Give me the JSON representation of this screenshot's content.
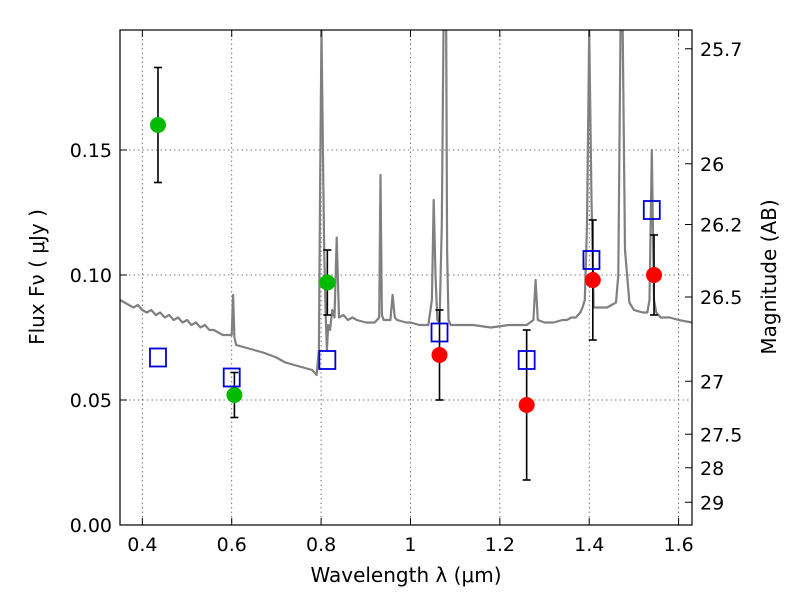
{
  "chart_data": {
    "type": "scatter",
    "xlabel": "Wavelength  λ (μm)",
    "ylabel": "Flux  Fν  ( μJy )",
    "y2label": "Magnitude (AB)",
    "xlim": [
      0.35,
      1.63
    ],
    "ylim": [
      0.0,
      0.198
    ],
    "grid": true,
    "x_ticks": [
      0.4,
      0.6,
      0.8,
      1.0,
      1.2,
      1.4,
      1.6
    ],
    "x_tick_labels": [
      "0.4",
      "0.6",
      "0.8",
      "1",
      "1.2",
      "1.4",
      "1.6"
    ],
    "y_ticks": [
      0.0,
      0.05,
      0.1,
      0.15
    ],
    "y_tick_labels": [
      "0.00",
      "0.05",
      "0.10",
      "0.15"
    ],
    "mag_ticks": [
      {
        "label": "25.7",
        "flux": 0.1905
      },
      {
        "label": "26",
        "flux": 0.1445
      },
      {
        "label": "26.2",
        "flux": 0.1202
      },
      {
        "label": "26.5",
        "flux": 0.0912
      },
      {
        "label": "27",
        "flux": 0.0575
      },
      {
        "label": "27.5",
        "flux": 0.0363
      },
      {
        "label": "28",
        "flux": 0.0229
      },
      {
        "label": "29",
        "flux": 0.0091
      }
    ],
    "spectrum": {
      "color": "#808080",
      "x": [
        0.35,
        0.36,
        0.37,
        0.38,
        0.39,
        0.4,
        0.41,
        0.42,
        0.43,
        0.44,
        0.45,
        0.46,
        0.47,
        0.48,
        0.49,
        0.5,
        0.51,
        0.52,
        0.53,
        0.54,
        0.55,
        0.56,
        0.57,
        0.58,
        0.59,
        0.6,
        0.603,
        0.606,
        0.61,
        0.63,
        0.65,
        0.67,
        0.7,
        0.72,
        0.74,
        0.76,
        0.78,
        0.79,
        0.795,
        0.798,
        0.801,
        0.804,
        0.807,
        0.81,
        0.813,
        0.816,
        0.82,
        0.825,
        0.83,
        0.835,
        0.84,
        0.85,
        0.86,
        0.87,
        0.88,
        0.9,
        0.92,
        0.93,
        0.933,
        0.936,
        0.94,
        0.955,
        0.96,
        0.965,
        0.97,
        0.99,
        1.0,
        1.02,
        1.04,
        1.048,
        1.052,
        1.056,
        1.06,
        1.065,
        1.07,
        1.074,
        1.077,
        1.08,
        1.082,
        1.085,
        1.09,
        1.1,
        1.14,
        1.18,
        1.22,
        1.26,
        1.275,
        1.28,
        1.285,
        1.3,
        1.32,
        1.34,
        1.35,
        1.36,
        1.37,
        1.375,
        1.38,
        1.385,
        1.39,
        1.395,
        1.4,
        1.405,
        1.41,
        1.42,
        1.44,
        1.45,
        1.46,
        1.465,
        1.47,
        1.475,
        1.48,
        1.49,
        1.5,
        1.52,
        1.53,
        1.535,
        1.54,
        1.545,
        1.55,
        1.56,
        1.58,
        1.6,
        1.63
      ],
      "y": [
        0.09,
        0.089,
        0.088,
        0.087,
        0.088,
        0.086,
        0.085,
        0.086,
        0.084,
        0.085,
        0.083,
        0.084,
        0.082,
        0.083,
        0.081,
        0.082,
        0.08,
        0.081,
        0.079,
        0.08,
        0.078,
        0.078,
        0.077,
        0.076,
        0.076,
        0.076,
        0.092,
        0.075,
        0.072,
        0.071,
        0.07,
        0.069,
        0.067,
        0.065,
        0.064,
        0.063,
        0.062,
        0.06,
        0.07,
        0.14,
        0.198,
        0.15,
        0.11,
        0.085,
        0.07,
        0.08,
        0.078,
        0.086,
        0.083,
        0.115,
        0.083,
        0.084,
        0.082,
        0.083,
        0.082,
        0.081,
        0.081,
        0.083,
        0.14,
        0.084,
        0.082,
        0.082,
        0.092,
        0.083,
        0.082,
        0.081,
        0.081,
        0.08,
        0.08,
        0.09,
        0.13,
        0.1,
        0.082,
        0.081,
        0.12,
        0.198,
        0.198,
        0.198,
        0.11,
        0.082,
        0.08,
        0.08,
        0.08,
        0.079,
        0.08,
        0.08,
        0.082,
        0.098,
        0.082,
        0.081,
        0.081,
        0.082,
        0.082,
        0.083,
        0.083,
        0.084,
        0.085,
        0.087,
        0.09,
        0.12,
        0.198,
        0.13,
        0.087,
        0.087,
        0.087,
        0.088,
        0.089,
        0.1,
        0.198,
        0.198,
        0.11,
        0.089,
        0.086,
        0.085,
        0.085,
        0.09,
        0.15,
        0.09,
        0.085,
        0.083,
        0.083,
        0.082,
        0.081
      ]
    },
    "series": [
      {
        "marker": "filled-circle",
        "color": "#00bb00",
        "points": [
          {
            "x": 0.435,
            "y": 0.16,
            "err_lo": 0.023,
            "err_hi": 0.023
          },
          {
            "x": 0.606,
            "y": 0.052,
            "err_lo": 0.009,
            "err_hi": 0.009
          },
          {
            "x": 0.814,
            "y": 0.097,
            "err_lo": 0.013,
            "err_hi": 0.013
          }
        ]
      },
      {
        "marker": "filled-circle",
        "color": "#ff0000",
        "points": [
          {
            "x": 1.065,
            "y": 0.068,
            "err_lo": 0.018,
            "err_hi": 0.018
          },
          {
            "x": 1.26,
            "y": 0.048,
            "err_lo": 0.03,
            "err_hi": 0.03
          },
          {
            "x": 1.408,
            "y": 0.098,
            "err_lo": 0.024,
            "err_hi": 0.024
          },
          {
            "x": 1.545,
            "y": 0.1,
            "err_lo": 0.016,
            "err_hi": 0.016
          }
        ]
      },
      {
        "marker": "open-square",
        "color": "#0000dd",
        "points": [
          {
            "x": 0.435,
            "y": 0.067
          },
          {
            "x": 0.6,
            "y": 0.059
          },
          {
            "x": 0.814,
            "y": 0.066
          },
          {
            "x": 1.065,
            "y": 0.077
          },
          {
            "x": 1.26,
            "y": 0.066
          },
          {
            "x": 1.405,
            "y": 0.106
          },
          {
            "x": 1.54,
            "y": 0.126
          }
        ]
      }
    ]
  }
}
